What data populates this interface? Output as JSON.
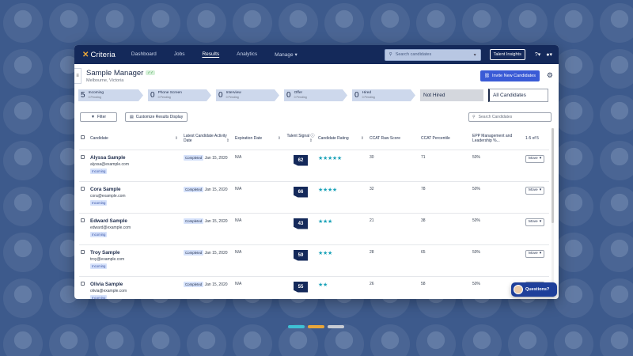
{
  "nav": {
    "logo": "Criteria",
    "links": [
      "Dashboard",
      "Jobs",
      "Results",
      "Analytics",
      "Manage"
    ],
    "active": "Results",
    "search_placeholder": "Search candidates",
    "insights_label": "Talent Insights",
    "help_icon": "?",
    "user_icon": "user"
  },
  "header": {
    "title": "Sample Manager",
    "location": "Melbourne, Victoria",
    "invite_label": "Invite New Candidates"
  },
  "pipeline": {
    "stages": [
      {
        "count": "5",
        "name": "Incoming",
        "pending": "0 Pending"
      },
      {
        "count": "0",
        "name": "Phone Screen",
        "pending": "0 Pending"
      },
      {
        "count": "0",
        "name": "Interview",
        "pending": "0 Pending"
      },
      {
        "count": "0",
        "name": "Offer",
        "pending": "0 Pending"
      },
      {
        "count": "0",
        "name": "Hired",
        "pending": "0 Pending"
      }
    ],
    "not_hired": "Not Hired",
    "all": "All Candidates"
  },
  "toolbar": {
    "filter_label": "Filter",
    "customize_label": "Customize Results Display",
    "search_placeholder": "Search Candidates"
  },
  "table": {
    "headers": {
      "candidate": "Candidate",
      "activity_date": "Latest Candidate Activity Date",
      "expiration": "Expiration Date",
      "talent_signal": "Talent Signal",
      "rating": "Candidate Rating",
      "ccat_raw": "CCAT Raw Score",
      "ccat_pct": "CCAT Percentile",
      "epp": "EPP Management and Leadership %...",
      "count": "1-5 of 5"
    },
    "rows": [
      {
        "name": "Alyssa Sample",
        "email": "alyssa@example.com",
        "tag": "Incoming",
        "status": "Completed",
        "date": "Jan 15, 2020",
        "expiration": "N/A",
        "signal": "62",
        "stars": 5,
        "raw": "30",
        "pct": "71",
        "epp": "50%",
        "action": "Move"
      },
      {
        "name": "Cora Sample",
        "email": "cora@example.com",
        "tag": "Incoming",
        "status": "Completed",
        "date": "Jan 15, 2020",
        "expiration": "N/A",
        "signal": "66",
        "stars": 4,
        "raw": "32",
        "pct": "78",
        "epp": "50%",
        "action": "Move"
      },
      {
        "name": "Edward Sample",
        "email": "edward@example.com",
        "tag": "Incoming",
        "status": "Completed",
        "date": "Jan 15, 2020",
        "expiration": "N/A",
        "signal": "43",
        "stars": 3,
        "raw": "21",
        "pct": "38",
        "epp": "50%",
        "action": "Move"
      },
      {
        "name": "Troy Sample",
        "email": "troy@example.com",
        "tag": "Incoming",
        "status": "Completed",
        "date": "Jan 15, 2020",
        "expiration": "N/A",
        "signal": "59",
        "stars": 3,
        "raw": "28",
        "pct": "65",
        "epp": "50%",
        "action": "Move"
      },
      {
        "name": "Olivia Sample",
        "email": "olivia@example.com",
        "tag": "Incoming",
        "status": "Completed",
        "date": "Jan 15, 2020",
        "expiration": "N/A",
        "signal": "55",
        "stars": 2,
        "raw": "26",
        "pct": "58",
        "epp": "50%",
        "action": "Move"
      }
    ]
  },
  "chat": {
    "label": "Questions?"
  },
  "carousel_colors": [
    "#3fc1d4",
    "#e9a63a",
    "#c7cbd3"
  ],
  "colors": {
    "nav_bg": "#14295a",
    "accent": "#3a5bd6",
    "star": "#1aa2b8",
    "page_bg": "#3d5a8c"
  }
}
